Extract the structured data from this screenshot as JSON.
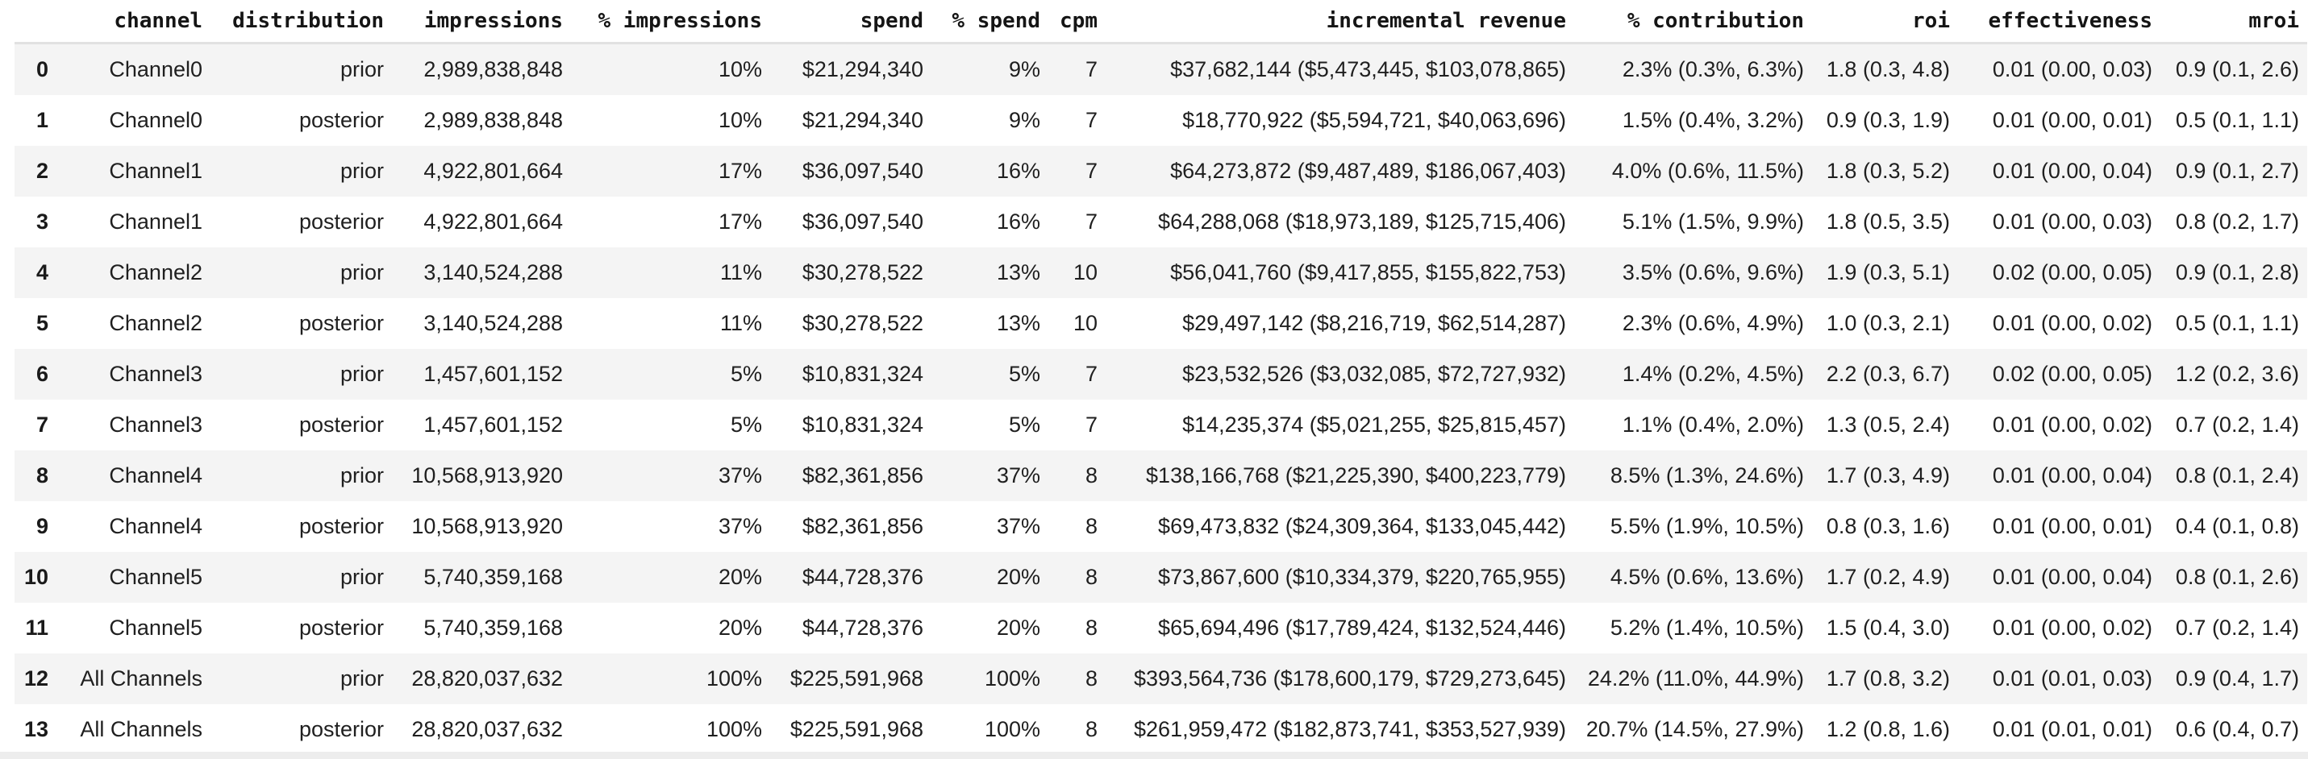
{
  "chart_data": {
    "type": "table",
    "title": "",
    "columns": [
      "channel",
      "distribution",
      "impressions",
      "% impressions",
      "spend",
      "% spend",
      "cpm",
      "incremental revenue",
      "% contribution",
      "roi",
      "effectiveness",
      "mroi"
    ],
    "index_header": "",
    "index": [
      "0",
      "1",
      "2",
      "3",
      "4",
      "5",
      "6",
      "7",
      "8",
      "9",
      "10",
      "11",
      "12",
      "13"
    ],
    "rows": [
      [
        "Channel0",
        "prior",
        "2,989,838,848",
        "10%",
        "$21,294,340",
        "9%",
        "7",
        "$37,682,144 ($5,473,445, $103,078,865)",
        "2.3% (0.3%, 6.3%)",
        "1.8 (0.3, 4.8)",
        "0.01 (0.00, 0.03)",
        "0.9 (0.1, 2.6)"
      ],
      [
        "Channel0",
        "posterior",
        "2,989,838,848",
        "10%",
        "$21,294,340",
        "9%",
        "7",
        "$18,770,922 ($5,594,721, $40,063,696)",
        "1.5% (0.4%, 3.2%)",
        "0.9 (0.3, 1.9)",
        "0.01 (0.00, 0.01)",
        "0.5 (0.1, 1.1)"
      ],
      [
        "Channel1",
        "prior",
        "4,922,801,664",
        "17%",
        "$36,097,540",
        "16%",
        "7",
        "$64,273,872 ($9,487,489, $186,067,403)",
        "4.0% (0.6%, 11.5%)",
        "1.8 (0.3, 5.2)",
        "0.01 (0.00, 0.04)",
        "0.9 (0.1, 2.7)"
      ],
      [
        "Channel1",
        "posterior",
        "4,922,801,664",
        "17%",
        "$36,097,540",
        "16%",
        "7",
        "$64,288,068 ($18,973,189, $125,715,406)",
        "5.1% (1.5%, 9.9%)",
        "1.8 (0.5, 3.5)",
        "0.01 (0.00, 0.03)",
        "0.8 (0.2, 1.7)"
      ],
      [
        "Channel2",
        "prior",
        "3,140,524,288",
        "11%",
        "$30,278,522",
        "13%",
        "10",
        "$56,041,760 ($9,417,855, $155,822,753)",
        "3.5% (0.6%, 9.6%)",
        "1.9 (0.3, 5.1)",
        "0.02 (0.00, 0.05)",
        "0.9 (0.1, 2.8)"
      ],
      [
        "Channel2",
        "posterior",
        "3,140,524,288",
        "11%",
        "$30,278,522",
        "13%",
        "10",
        "$29,497,142 ($8,216,719, $62,514,287)",
        "2.3% (0.6%, 4.9%)",
        "1.0 (0.3, 2.1)",
        "0.01 (0.00, 0.02)",
        "0.5 (0.1, 1.1)"
      ],
      [
        "Channel3",
        "prior",
        "1,457,601,152",
        "5%",
        "$10,831,324",
        "5%",
        "7",
        "$23,532,526 ($3,032,085, $72,727,932)",
        "1.4% (0.2%, 4.5%)",
        "2.2 (0.3, 6.7)",
        "0.02 (0.00, 0.05)",
        "1.2 (0.2, 3.6)"
      ],
      [
        "Channel3",
        "posterior",
        "1,457,601,152",
        "5%",
        "$10,831,324",
        "5%",
        "7",
        "$14,235,374 ($5,021,255, $25,815,457)",
        "1.1% (0.4%, 2.0%)",
        "1.3 (0.5, 2.4)",
        "0.01 (0.00, 0.02)",
        "0.7 (0.2, 1.4)"
      ],
      [
        "Channel4",
        "prior",
        "10,568,913,920",
        "37%",
        "$82,361,856",
        "37%",
        "8",
        "$138,166,768 ($21,225,390, $400,223,779)",
        "8.5% (1.3%, 24.6%)",
        "1.7 (0.3, 4.9)",
        "0.01 (0.00, 0.04)",
        "0.8 (0.1, 2.4)"
      ],
      [
        "Channel4",
        "posterior",
        "10,568,913,920",
        "37%",
        "$82,361,856",
        "37%",
        "8",
        "$69,473,832 ($24,309,364, $133,045,442)",
        "5.5% (1.9%, 10.5%)",
        "0.8 (0.3, 1.6)",
        "0.01 (0.00, 0.01)",
        "0.4 (0.1, 0.8)"
      ],
      [
        "Channel5",
        "prior",
        "5,740,359,168",
        "20%",
        "$44,728,376",
        "20%",
        "8",
        "$73,867,600 ($10,334,379, $220,765,955)",
        "4.5% (0.6%, 13.6%)",
        "1.7 (0.2, 4.9)",
        "0.01 (0.00, 0.04)",
        "0.8 (0.1, 2.6)"
      ],
      [
        "Channel5",
        "posterior",
        "5,740,359,168",
        "20%",
        "$44,728,376",
        "20%",
        "8",
        "$65,694,496 ($17,789,424, $132,524,446)",
        "5.2% (1.4%, 10.5%)",
        "1.5 (0.4, 3.0)",
        "0.01 (0.00, 0.02)",
        "0.7 (0.2, 1.4)"
      ],
      [
        "All Channels",
        "prior",
        "28,820,037,632",
        "100%",
        "$225,591,968",
        "100%",
        "8",
        "$393,564,736 ($178,600,179, $729,273,645)",
        "24.2% (11.0%, 44.9%)",
        "1.7 (0.8, 3.2)",
        "0.01 (0.01, 0.03)",
        "0.9 (0.4, 1.7)"
      ],
      [
        "All Channels",
        "posterior",
        "28,820,037,632",
        "100%",
        "$225,591,968",
        "100%",
        "8",
        "$261,959,472 ($182,873,741, $353,527,939)",
        "20.7% (14.5%, 27.9%)",
        "1.2 (0.8, 1.6)",
        "0.01 (0.01, 0.01)",
        "0.6 (0.4, 0.7)"
      ]
    ],
    "layout_hints": {
      "zebra_striping": "odd rows (index 0,2,4,...) shaded",
      "alignment": "all cells right-aligned",
      "header_font": "bold monospace"
    }
  },
  "colors": {
    "row_stripe": "#f4f4f4",
    "header_divider": "#e1e1e1",
    "body_text": "#1f1f1f",
    "scrollbar_track": "#ededed"
  }
}
